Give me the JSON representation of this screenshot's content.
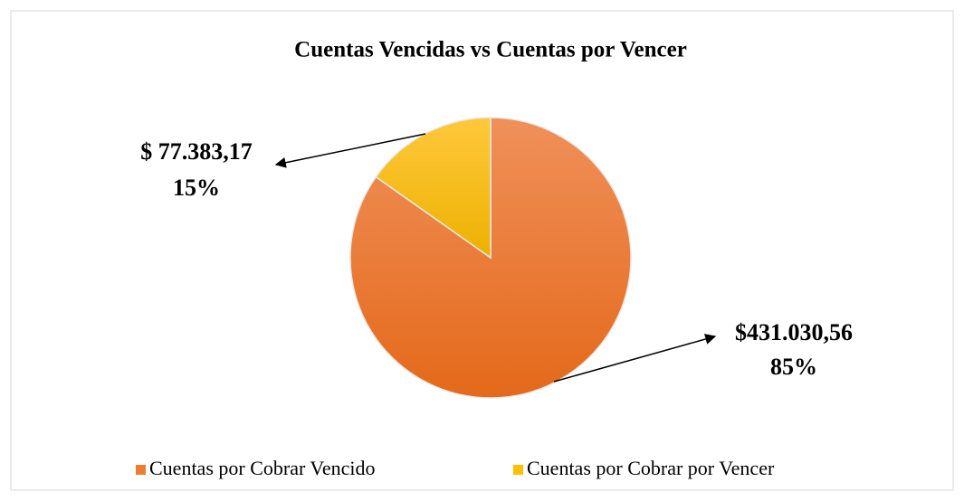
{
  "chart_data": {
    "type": "pie",
    "title": "Cuentas Vencidas vs Cuentas por Vencer",
    "categories": [
      "Cuentas por Cobrar Vencido",
      "Cuentas por Cobrar por Vencer"
    ],
    "values": [
      431030.56,
      77383.17
    ],
    "value_labels": [
      "$431.030,56",
      "$ 77.383,17"
    ],
    "percent_labels": [
      "85%",
      "15%"
    ],
    "colors": [
      "#ED7D31",
      "#FFC000"
    ],
    "legend": "bottom"
  }
}
